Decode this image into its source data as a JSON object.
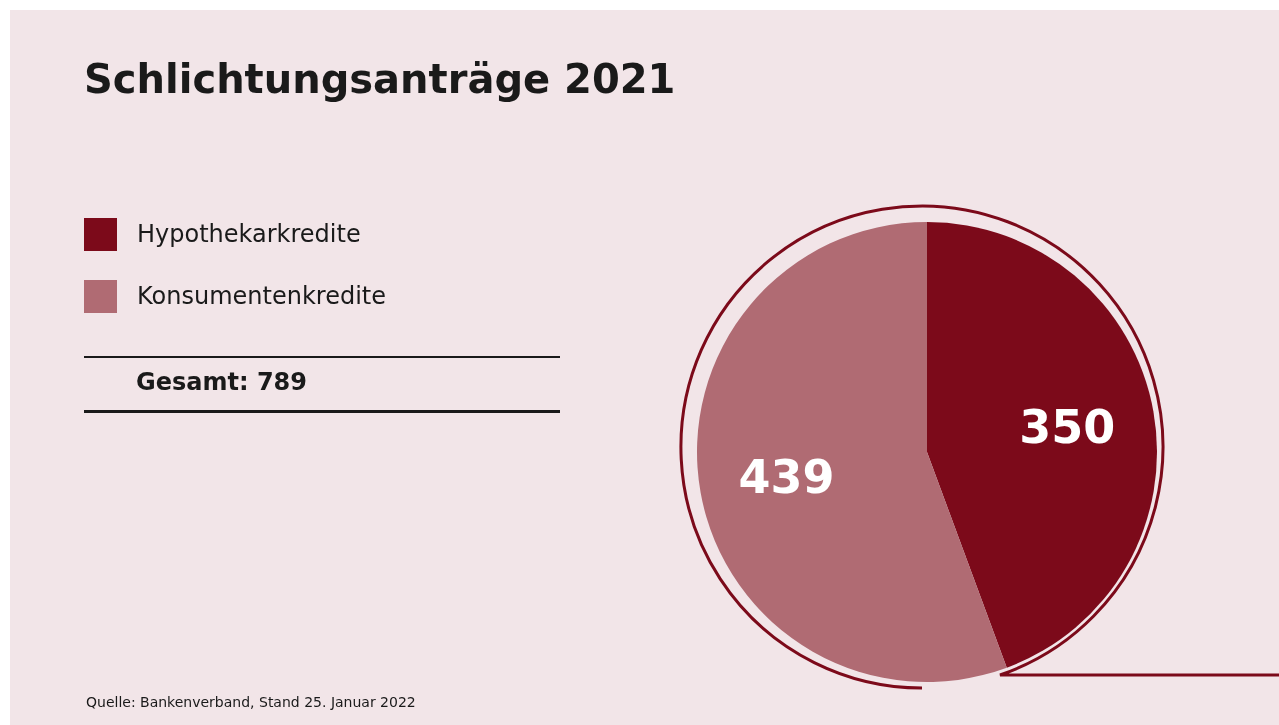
{
  "chart_data": {
    "type": "pie",
    "title": "Schlichtungsanträge 2021",
    "categories": [
      "Hypothekarkredite",
      "Konsumentenkredite"
    ],
    "values": [
      350,
      439
    ],
    "colors": [
      "#7c0a1a",
      "#b06b73"
    ],
    "data_labels": true,
    "legend": "left",
    "annotations": [
      "Gesamt: 789",
      "Quelle: Bankenverband, Stand 25. Januar 2022"
    ]
  }
}
